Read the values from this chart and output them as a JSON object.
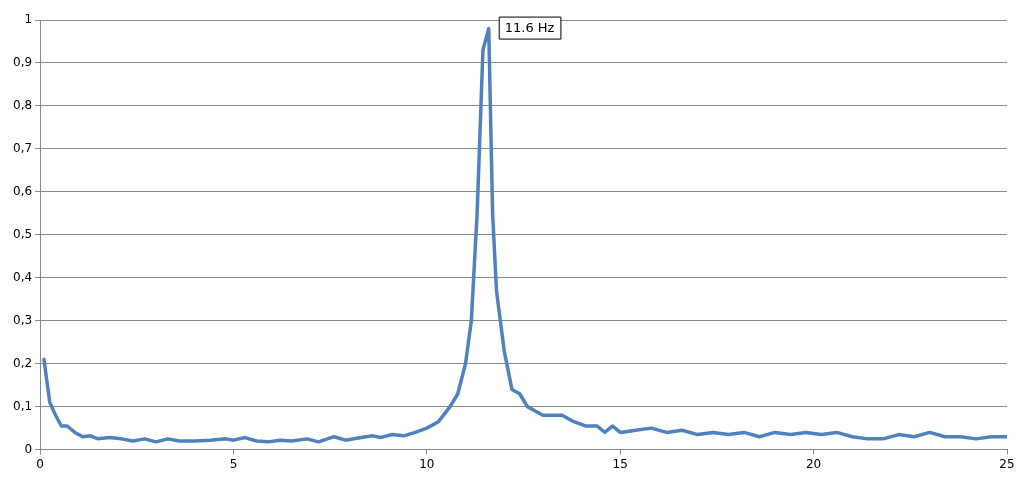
{
  "chart_data": {
    "type": "line",
    "grid": "y",
    "marker": "none",
    "line_style": "solid",
    "xlim": [
      0,
      25
    ],
    "xticks": [
      0,
      5,
      10,
      15,
      20,
      25
    ],
    "ylim": [
      0,
      1
    ],
    "yticks": [
      0,
      {
        "value": 0.1,
        "label": "0,1"
      },
      {
        "value": 0.2,
        "label": "0,2"
      },
      {
        "value": 0.3,
        "label": "0,3"
      },
      {
        "value": 0.4,
        "label": "0,4"
      },
      {
        "value": 0.5,
        "label": "0,5"
      },
      {
        "value": 0.6,
        "label": "0,6"
      },
      {
        "value": 0.7,
        "label": "0,7"
      },
      {
        "value": 0.8,
        "label": "0,8"
      },
      {
        "value": 0.9,
        "label": "0,9"
      },
      1
    ],
    "annotations": [
      {
        "text": "11.6 Hz",
        "x": 11.6,
        "y": 0.98
      }
    ],
    "series": [
      {
        "color": "#4f81bd",
        "x": [
          0.1,
          0.25,
          0.4,
          0.55,
          0.7,
          0.9,
          1.1,
          1.3,
          1.5,
          1.8,
          2.1,
          2.4,
          2.7,
          3.0,
          3.3,
          3.6,
          4.0,
          4.4,
          4.8,
          5.0,
          5.3,
          5.6,
          5.9,
          6.2,
          6.5,
          6.9,
          7.2,
          7.6,
          7.9,
          8.3,
          8.6,
          8.8,
          9.1,
          9.4,
          9.7,
          10.0,
          10.3,
          10.6,
          10.8,
          11.0,
          11.15,
          11.3,
          11.45,
          11.6,
          11.7,
          11.8,
          12.0,
          12.2,
          12.4,
          12.6,
          12.8,
          13.0,
          13.2,
          13.5,
          13.8,
          14.1,
          14.4,
          14.6,
          14.8,
          15.0,
          15.4,
          15.8,
          16.2,
          16.6,
          17.0,
          17.4,
          17.8,
          18.2,
          18.6,
          19.0,
          19.4,
          19.8,
          20.2,
          20.6,
          21.0,
          21.4,
          21.8,
          22.2,
          22.6,
          23.0,
          23.4,
          23.8,
          24.2,
          24.6,
          25.0
        ],
        "values": [
          0.21,
          0.11,
          0.08,
          0.055,
          0.055,
          0.04,
          0.03,
          0.032,
          0.025,
          0.028,
          0.025,
          0.02,
          0.025,
          0.018,
          0.025,
          0.02,
          0.02,
          0.022,
          0.025,
          0.022,
          0.028,
          0.02,
          0.018,
          0.022,
          0.02,
          0.025,
          0.018,
          0.03,
          0.022,
          0.028,
          0.032,
          0.028,
          0.035,
          0.032,
          0.04,
          0.05,
          0.065,
          0.1,
          0.13,
          0.2,
          0.3,
          0.55,
          0.93,
          0.98,
          0.55,
          0.37,
          0.23,
          0.14,
          0.13,
          0.1,
          0.09,
          0.08,
          0.08,
          0.08,
          0.065,
          0.055,
          0.055,
          0.04,
          0.055,
          0.04,
          0.045,
          0.05,
          0.04,
          0.045,
          0.035,
          0.04,
          0.035,
          0.04,
          0.03,
          0.04,
          0.035,
          0.04,
          0.035,
          0.04,
          0.03,
          0.025,
          0.025,
          0.035,
          0.03,
          0.04,
          0.03,
          0.03,
          0.025,
          0.03,
          0.03
        ]
      }
    ]
  }
}
